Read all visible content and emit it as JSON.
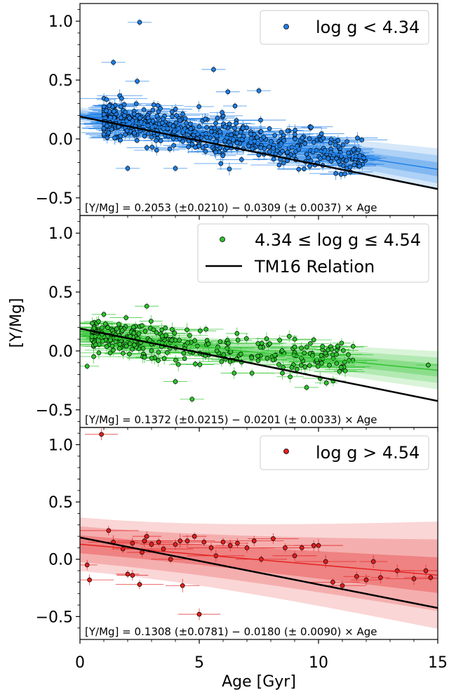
{
  "figure": {
    "xlabel": "Age [Gyr]",
    "ylabel": "[Y/Mg]",
    "xlim": [
      0,
      15
    ],
    "xticks": [
      "0",
      "5",
      "10",
      "15"
    ],
    "yticks": [
      "−0.5",
      "0.0",
      "0.5",
      "1.0"
    ]
  },
  "colors": {
    "axes": "#000000",
    "tm16": "#000000",
    "blue": "#1e7fe6",
    "green": "#2ec42e",
    "red": "#e21e1e"
  },
  "chart_data": [
    {
      "type": "scatter",
      "panel": "top",
      "ylim": [
        -0.65,
        1.15
      ],
      "legend": {
        "position": "top-right",
        "entries": [
          "log g < 4.34"
        ]
      },
      "series_name": "log g < 4.34",
      "color": "#1e7fe6",
      "fit": {
        "intercept": 0.2053,
        "slope": -0.0309,
        "intercept_err": 0.021,
        "slope_err": 0.0037
      },
      "tm16": {
        "intercept": 0.19,
        "slope": -0.041
      },
      "equation": "[Y/Mg] = 0.2053 (±0.0210) − 0.0309 (± 0.0037) × Age",
      "n_points": 520,
      "age_range": [
        1.0,
        12.0
      ],
      "scatter_sigma": 0.08,
      "outliers": [
        [
          2.5,
          0.99
        ],
        [
          1.4,
          0.65
        ],
        [
          5.6,
          0.59
        ],
        [
          7.5,
          0.41
        ],
        [
          6.2,
          0.4
        ],
        [
          2.4,
          0.49
        ],
        [
          1.1,
          0.24
        ],
        [
          2.0,
          -0.25
        ],
        [
          4.0,
          -0.25
        ],
        [
          6.5,
          0.28
        ]
      ]
    },
    {
      "type": "scatter",
      "panel": "middle",
      "ylim": [
        -0.65,
        1.15
      ],
      "legend": {
        "position": "top-right",
        "entries": [
          "4.34 ≤ log g ≤ 4.54",
          "TM16 Relation"
        ]
      },
      "series_name": "4.34 ≤ log g ≤ 4.54",
      "color": "#2ec42e",
      "fit": {
        "intercept": 0.1372,
        "slope": -0.0201,
        "intercept_err": 0.0215,
        "slope_err": 0.0033
      },
      "tm16": {
        "intercept": 0.19,
        "slope": -0.041
      },
      "equation": "[Y/Mg] = 0.1372 (±0.0215) − 0.0201 (± 0.0033) × Age",
      "n_points": 300,
      "age_range": [
        0.5,
        11.5
      ],
      "scatter_sigma": 0.08,
      "outliers": [
        [
          1.0,
          0.31
        ],
        [
          2.8,
          0.38
        ],
        [
          0.3,
          -0.13
        ],
        [
          4.7,
          -0.41
        ],
        [
          4.0,
          -0.26
        ],
        [
          14.6,
          -0.12
        ],
        [
          9.5,
          -0.31
        ]
      ]
    },
    {
      "type": "scatter",
      "panel": "bottom",
      "ylim": [
        -0.7,
        1.15
      ],
      "legend": {
        "position": "top-right",
        "entries": [
          "log g > 4.54"
        ]
      },
      "series_name": "log g > 4.54",
      "color": "#e21e1e",
      "fit": {
        "intercept": 0.1308,
        "slope": -0.018,
        "intercept_err": 0.0781,
        "slope_err": 0.009
      },
      "tm16": {
        "intercept": 0.19,
        "slope": -0.041
      },
      "equation": "[Y/Mg] = 0.1308 (±0.0781) − 0.0180 (± 0.0090) × Age",
      "points": [
        [
          0.9,
          1.09
        ],
        [
          0.3,
          -0.05
        ],
        [
          0.4,
          -0.18
        ],
        [
          1.2,
          0.25
        ],
        [
          1.4,
          0.15
        ],
        [
          1.8,
          0.09
        ],
        [
          2.0,
          -0.13
        ],
        [
          2.2,
          -0.14
        ],
        [
          2.2,
          0.14
        ],
        [
          2.5,
          -0.22
        ],
        [
          2.6,
          0.06
        ],
        [
          2.7,
          0.16
        ],
        [
          2.8,
          0.2
        ],
        [
          3.0,
          0.13
        ],
        [
          3.3,
          0.15
        ],
        [
          3.5,
          0.09
        ],
        [
          3.8,
          0.0
        ],
        [
          4.0,
          0.13
        ],
        [
          4.2,
          0.16
        ],
        [
          4.3,
          -0.23
        ],
        [
          4.5,
          0.16
        ],
        [
          4.8,
          0.2
        ],
        [
          5.0,
          -0.48
        ],
        [
          5.2,
          0.15
        ],
        [
          5.5,
          0.1
        ],
        [
          5.7,
          0.03
        ],
        [
          6.0,
          0.15
        ],
        [
          6.3,
          0.12
        ],
        [
          6.6,
          0.14
        ],
        [
          7.0,
          0.1
        ],
        [
          7.3,
          0.16
        ],
        [
          7.6,
          0.0
        ],
        [
          8.1,
          0.18
        ],
        [
          8.6,
          0.1
        ],
        [
          9.0,
          0.03
        ],
        [
          9.3,
          0.1
        ],
        [
          9.8,
          0.12
        ],
        [
          10.0,
          0.12
        ],
        [
          10.3,
          -0.02
        ],
        [
          10.6,
          -0.2
        ],
        [
          11.0,
          -0.23
        ],
        [
          11.6,
          -0.15
        ],
        [
          12.0,
          -0.18
        ],
        [
          12.3,
          -0.02
        ],
        [
          12.6,
          -0.16
        ],
        [
          13.3,
          -0.1
        ],
        [
          14.0,
          -0.17
        ],
        [
          14.5,
          -0.1
        ],
        [
          14.7,
          -0.16
        ]
      ]
    }
  ]
}
